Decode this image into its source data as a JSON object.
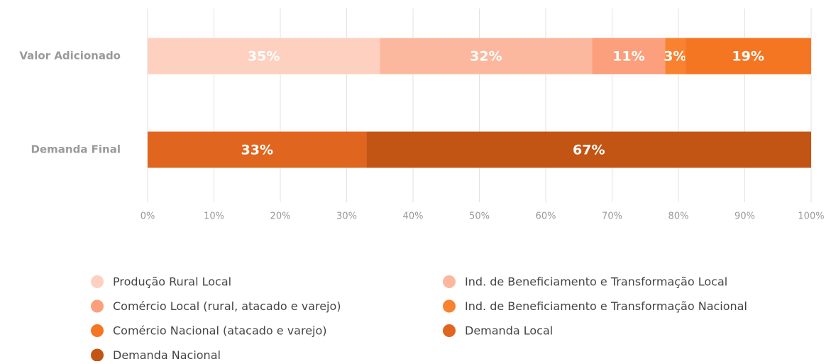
{
  "chart_data": {
    "type": "stacked_barh",
    "categories": [
      "Valor Adicionado",
      "Demanda Final"
    ],
    "series": [
      {
        "name": "Produção Rural Local",
        "color": "#fdd0c0",
        "values": [
          35,
          null
        ],
        "value_labels": [
          "35%",
          null
        ]
      },
      {
        "name": "Ind. de Beneficiamento e Transformação Local",
        "color": "#fcb89e",
        "values": [
          32,
          null
        ],
        "value_labels": [
          "32%",
          null
        ]
      },
      {
        "name": "Comércio Local (rural, atacado e varejo)",
        "color": "#fb9f7c",
        "values": [
          11,
          null
        ],
        "value_labels": [
          "11%",
          null
        ]
      },
      {
        "name": "Ind. de Beneficiamento e Transformação Nacional",
        "color": "#f8822f",
        "values": [
          3,
          null
        ],
        "value_labels": [
          "3%",
          null
        ]
      },
      {
        "name": "Comércio Nacional (atacado e varejo)",
        "color": "#f47522",
        "values": [
          19,
          null
        ],
        "value_labels": [
          "19%",
          null
        ]
      },
      {
        "name": "Demanda Local",
        "color": "#e0651e",
        "values": [
          null,
          33
        ],
        "value_labels": [
          null,
          "33%"
        ]
      },
      {
        "name": "Demanda Nacional",
        "color": "#c25414",
        "values": [
          null,
          67
        ],
        "value_labels": [
          null,
          "67%"
        ]
      }
    ],
    "xlim": [
      0,
      100
    ],
    "xticks": [
      {
        "value": 0,
        "label": "0%"
      },
      {
        "value": 10,
        "label": "10%"
      },
      {
        "value": 20,
        "label": "20%"
      },
      {
        "value": 30,
        "label": "30%"
      },
      {
        "value": 40,
        "label": "40%"
      },
      {
        "value": 50,
        "label": "50%"
      },
      {
        "value": 60,
        "label": "60%"
      },
      {
        "value": 70,
        "label": "70%"
      },
      {
        "value": 80,
        "label": "80%"
      },
      {
        "value": 90,
        "label": "90%"
      },
      {
        "value": 100,
        "label": "100%"
      }
    ],
    "grid": true,
    "legend": "bottom"
  }
}
